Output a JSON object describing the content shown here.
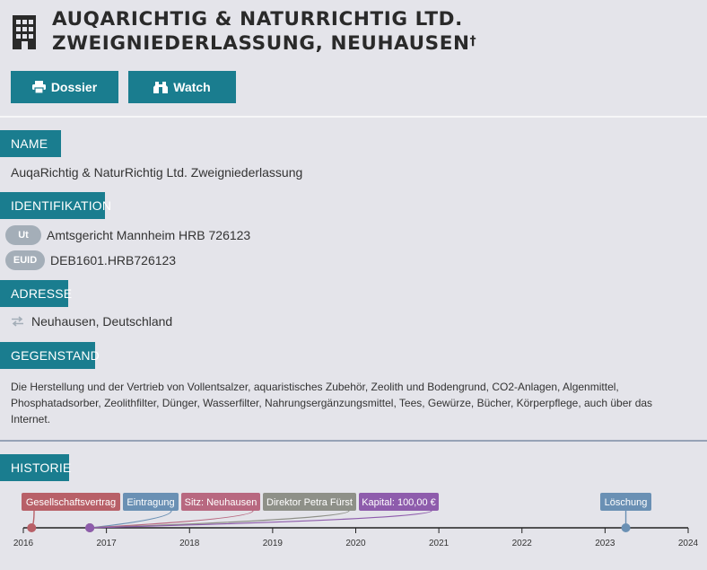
{
  "header": {
    "title_line1": "AUQARICHTIG & NATURRICHTIG LTD.",
    "title_line2": "ZWEIGNIEDERLASSUNG, NEUHAUSEN",
    "dagger": "†",
    "building_icon": "building-icon"
  },
  "actions": {
    "dossier_label": "Dossier",
    "dossier_icon": "printer-icon",
    "watch_label": "Watch",
    "watch_icon": "binoculars-icon"
  },
  "sections": {
    "name": {
      "label": "NAME",
      "value": "AuqaRichtig & NaturRichtig Ltd. Zweigniederlassung"
    },
    "identification": {
      "label": "IDENTIFIKATION",
      "items": [
        {
          "badge": "Ut",
          "value": "Amtsgericht Mannheim HRB 726123"
        },
        {
          "badge": "EUID",
          "value": "DEB1601.HRB726123"
        }
      ]
    },
    "address": {
      "label": "ADRESSE",
      "icon": "transfer-arrows-icon",
      "value": "Neuhausen, Deutschland"
    },
    "purpose": {
      "label": "GEGENSTAND",
      "line1": "Die Herstellung und der Vertrieb von Vollentsalzer, aquaristisches Zubehör, Zeolith und Bodengrund, CO2-Anlagen, Algenmittel,",
      "line2": "Phosphatadsorber, Zeolithfilter, Dünger, Wasserfilter, Nahrungsergänzungsmittel, Tees, Gewürze, Bücher, Körperpflege, auch über das",
      "line3": "Internet."
    },
    "history": {
      "label": "HISTORIE"
    }
  },
  "chart_data": {
    "type": "timeline",
    "x_ticks": [
      "2016",
      "2017",
      "2018",
      "2019",
      "2020",
      "2021",
      "2022",
      "2023",
      "2024"
    ],
    "xlim": [
      2016,
      2024
    ],
    "events": [
      {
        "label": "Gesellschaftsvertrag",
        "date": 2016.1,
        "color": "#b86068"
      },
      {
        "label": "Eintragung",
        "date": 2016.8,
        "color": "#6a90b4"
      },
      {
        "label": "Sitz: Neuhausen",
        "date": 2016.8,
        "color": "#b86880"
      },
      {
        "label": "Direktor Petra Fürst",
        "date": 2016.8,
        "color": "#8e9088"
      },
      {
        "label": "Kapital: 100,00 €",
        "date": 2016.8,
        "color": "#8e5cac"
      },
      {
        "label": "Löschung",
        "date": 2023.25,
        "color": "#6a90b4"
      }
    ],
    "axis_color": "#222222"
  }
}
